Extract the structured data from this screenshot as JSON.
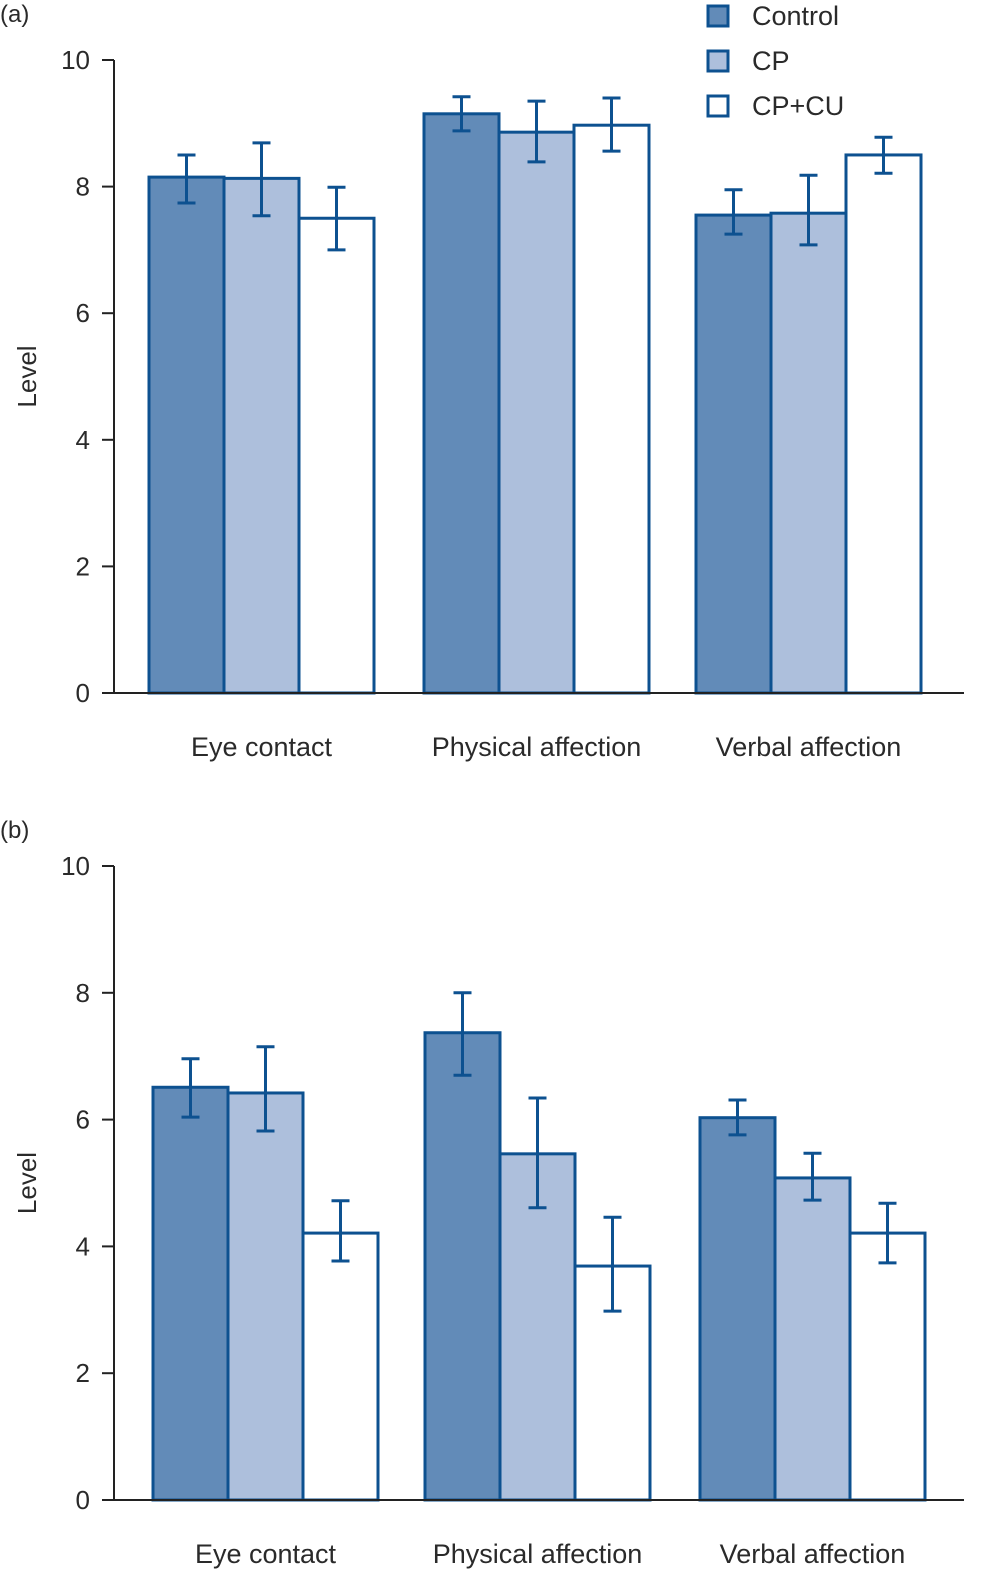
{
  "colors": {
    "Control": "#628bb8",
    "CP": "#adbfdc",
    "CP+CU": "#ffffff",
    "stroke": "#0d5190"
  },
  "legend": {
    "placement": "top-right",
    "entries": [
      "Control",
      "CP",
      "CP+CU"
    ]
  },
  "chart_data": [
    {
      "type": "bar",
      "panel_label": "(a)",
      "ylabel": "Level",
      "ylim": [
        0,
        10
      ],
      "yticks": [
        0,
        2,
        4,
        6,
        8,
        10
      ],
      "categories": [
        "Eye contact",
        "Physical affection",
        "Verbal affection"
      ],
      "series": [
        {
          "name": "Control",
          "values": [
            8.15,
            9.15,
            7.55
          ],
          "err_low": [
            7.74,
            8.88,
            7.25
          ],
          "err_high": [
            8.5,
            9.42,
            7.95
          ]
        },
        {
          "name": "CP",
          "values": [
            8.13,
            8.86,
            7.58
          ],
          "err_low": [
            7.54,
            8.39,
            7.08
          ],
          "err_high": [
            8.69,
            9.35,
            8.18
          ]
        },
        {
          "name": "CP+CU",
          "values": [
            7.5,
            8.97,
            8.5
          ],
          "err_low": [
            7.0,
            8.56,
            8.21
          ],
          "err_high": [
            7.99,
            9.4,
            8.78
          ]
        }
      ]
    },
    {
      "type": "bar",
      "panel_label": "(b)",
      "ylabel": "Level",
      "ylim": [
        0,
        10
      ],
      "yticks": [
        0,
        2,
        4,
        6,
        8,
        10
      ],
      "categories": [
        "Eye contact",
        "Physical affection",
        "Verbal affection"
      ],
      "series": [
        {
          "name": "Control",
          "values": [
            6.51,
            7.37,
            6.03
          ],
          "err_low": [
            6.04,
            6.7,
            5.76
          ],
          "err_high": [
            6.96,
            8.0,
            6.31
          ]
        },
        {
          "name": "CP",
          "values": [
            6.42,
            5.46,
            5.08
          ],
          "err_low": [
            5.82,
            4.61,
            4.73
          ],
          "err_high": [
            7.15,
            6.34,
            5.47
          ]
        },
        {
          "name": "CP+CU",
          "values": [
            4.21,
            3.69,
            4.21
          ],
          "err_low": [
            3.77,
            2.98,
            3.74
          ],
          "err_high": [
            4.72,
            4.46,
            4.68
          ]
        }
      ]
    }
  ]
}
